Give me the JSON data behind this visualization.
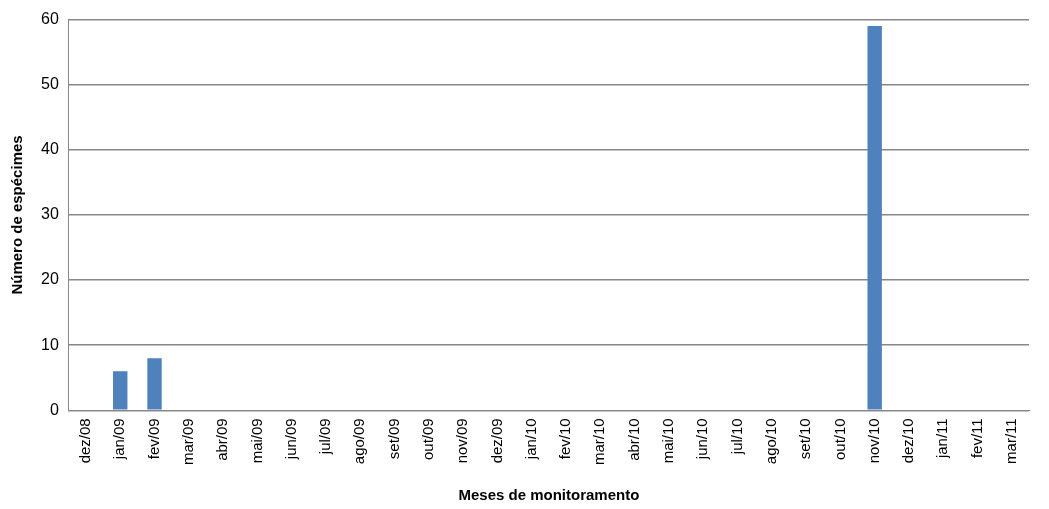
{
  "chart_data": {
    "type": "bar",
    "xlabel": "Meses de monitoramento",
    "ylabel": "Número de espécimes",
    "categories": [
      "dez/08",
      "jan/09",
      "fev/09",
      "mar/09",
      "abr/09",
      "mai/09",
      "jun/09",
      "jul/09",
      "ago/09",
      "set/09",
      "out/09",
      "nov/09",
      "dez/09",
      "jan/10",
      "fev/10",
      "mar/10",
      "abr/10",
      "mai/10",
      "jun/10",
      "jul/10",
      "ago/10",
      "set/10",
      "out/10",
      "nov/10",
      "dez/10",
      "jan/11",
      "fev/11",
      "mar/11"
    ],
    "values": [
      0,
      6,
      8,
      0,
      0,
      0,
      0,
      0,
      0,
      0,
      0,
      0,
      0,
      0,
      0,
      0,
      0,
      0,
      0,
      0,
      0,
      0,
      0,
      59,
      0,
      0,
      0,
      0
    ],
    "color": "#4f81bd",
    "ylim": [
      0,
      60
    ],
    "yticks": [
      0,
      10,
      20,
      30,
      40,
      50,
      60
    ],
    "grid": "y",
    "legend": false
  }
}
